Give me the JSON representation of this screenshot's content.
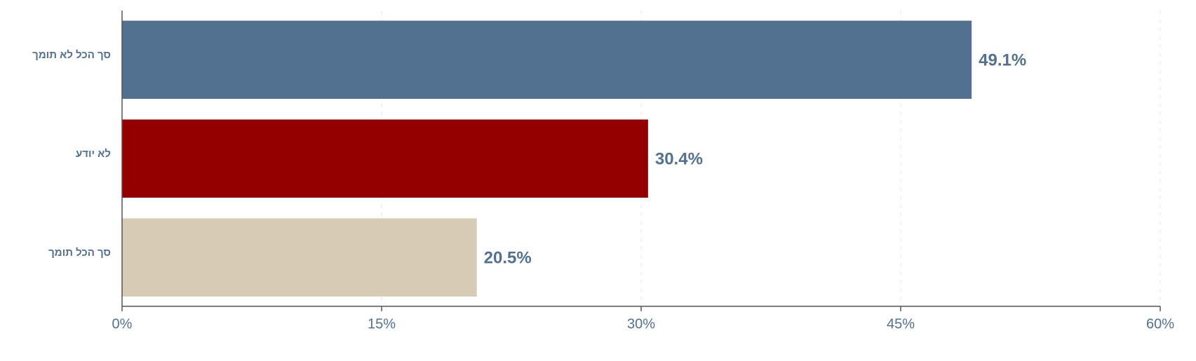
{
  "chart_data": {
    "type": "hbar",
    "categories": [
      "סך הכל לא תומך",
      "לא יודע",
      "סך הכל תומך"
    ],
    "values": [
      49.1,
      30.4,
      20.5
    ],
    "value_labels": [
      "49.1%",
      "30.4%",
      "20.5%"
    ],
    "colors": [
      "#52708f",
      "#940000",
      "#d6cbb5"
    ],
    "xlim": [
      0,
      60
    ],
    "xticks": [
      {
        "value": 0,
        "label": "0%"
      },
      {
        "value": 15,
        "label": "15%"
      },
      {
        "value": 30,
        "label": "30%"
      },
      {
        "value": 45,
        "label": "45%"
      },
      {
        "value": 60,
        "label": "60%"
      }
    ],
    "grid": true
  }
}
